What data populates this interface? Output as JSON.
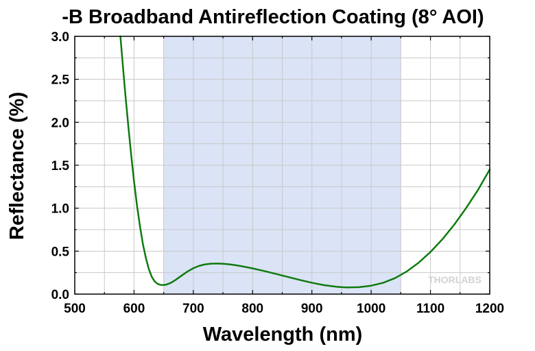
{
  "chart_data": {
    "type": "line",
    "title": "-B Broadband Antireflection Coating (8° AOI)",
    "xlabel": "Wavelength (nm)",
    "ylabel": "Reflectance (%)",
    "xlim": [
      500,
      1200
    ],
    "ylim": [
      0,
      3.0
    ],
    "x_ticks": [
      "500",
      "600",
      "700",
      "800",
      "900",
      "1000",
      "1100",
      "1200"
    ],
    "y_ticks": [
      "0.0",
      "0.5",
      "1.0",
      "1.5",
      "2.0",
      "2.5",
      "3.0"
    ],
    "grid": true,
    "highlight_band": {
      "x_range": [
        650,
        1050
      ],
      "color": "#dbe4f6"
    },
    "watermark": "THORLABS",
    "series": [
      {
        "color": "#0f7a0f",
        "x": [
          577,
          580,
          585,
          590,
          595,
          600,
          605,
          610,
          615,
          620,
          625,
          630,
          635,
          640,
          645,
          650,
          655,
          660,
          665,
          670,
          680,
          690,
          700,
          710,
          720,
          730,
          740,
          750,
          760,
          770,
          780,
          790,
          800,
          820,
          840,
          860,
          880,
          900,
          920,
          940,
          950,
          960,
          980,
          1000,
          1020,
          1040,
          1060,
          1080,
          1100,
          1120,
          1140,
          1160,
          1180,
          1200
        ],
        "y": [
          3.0,
          2.75,
          2.35,
          1.98,
          1.63,
          1.31,
          1.03,
          0.79,
          0.58,
          0.42,
          0.29,
          0.2,
          0.146,
          0.118,
          0.107,
          0.106,
          0.112,
          0.125,
          0.143,
          0.165,
          0.214,
          0.262,
          0.301,
          0.329,
          0.346,
          0.354,
          0.356,
          0.353,
          0.347,
          0.338,
          0.326,
          0.313,
          0.299,
          0.268,
          0.234,
          0.199,
          0.164,
          0.132,
          0.105,
          0.087,
          0.081,
          0.078,
          0.081,
          0.098,
          0.131,
          0.185,
          0.263,
          0.365,
          0.49,
          0.637,
          0.807,
          1.0,
          1.21,
          1.45
        ]
      }
    ]
  }
}
